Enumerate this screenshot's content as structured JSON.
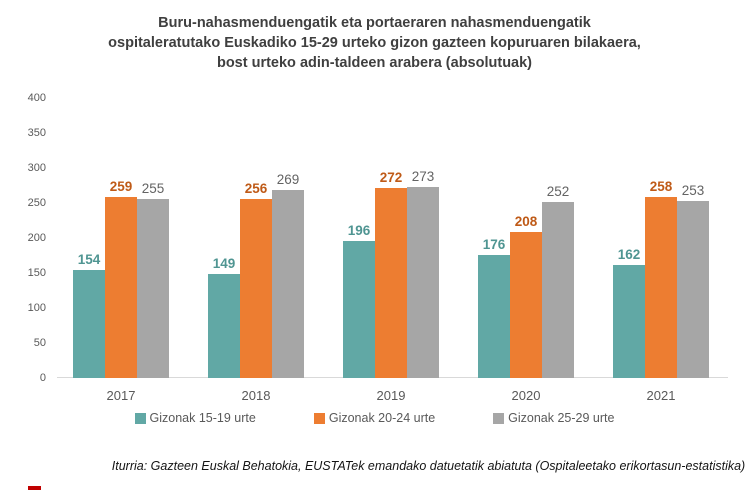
{
  "title_lines": [
    "Buru-nahasmenduengatik eta portaeraren nahasmenduengatik",
    "ospitaleratutako Euskadiko 15-29 urteko gizon gazteen kopuruaren bilakaera,",
    "bost urteko adin-taldeen arabera (absolutuak)"
  ],
  "source": "Iturria: Gazteen Euskal Behatokia, EUSTATek emandako datuetatik abiatuta (Ospitaleetako erikortasun-estatistika)",
  "chart_data": {
    "type": "bar",
    "title": "Buru-nahasmenduengatik eta portaeraren nahasmenduengatik ospitaleratutako Euskadiko 15-29 urteko gizon gazteen kopuruaren bilakaera, bost urteko adin-taldeen arabera (absolutuak)",
    "categories": [
      "2017",
      "2018",
      "2019",
      "2020",
      "2021"
    ],
    "series": [
      {
        "name": "Gizonak 15-19 urte",
        "color": "#61a8a5",
        "label_color": "#4f9592",
        "label_bold": true,
        "values": [
          154,
          149,
          196,
          176,
          162
        ]
      },
      {
        "name": "Gizonak 20-24 urte",
        "color": "#ed7d31",
        "label_color": "#bf5a17",
        "label_bold": true,
        "values": [
          259,
          256,
          272,
          208,
          258
        ]
      },
      {
        "name": "Gizonak 25-29 urte",
        "color": "#a6a6a6",
        "label_color": "#636363",
        "label_bold": false,
        "values": [
          255,
          269,
          273,
          252,
          253
        ]
      }
    ],
    "ylim": [
      0,
      400
    ],
    "yticks": [
      0,
      50,
      100,
      150,
      200,
      250,
      300,
      350,
      400
    ],
    "grid": false,
    "legend_position": "bottom",
    "data_labels": true,
    "axis_color": "#d9d9d9",
    "tick_label_color": "#595959"
  }
}
